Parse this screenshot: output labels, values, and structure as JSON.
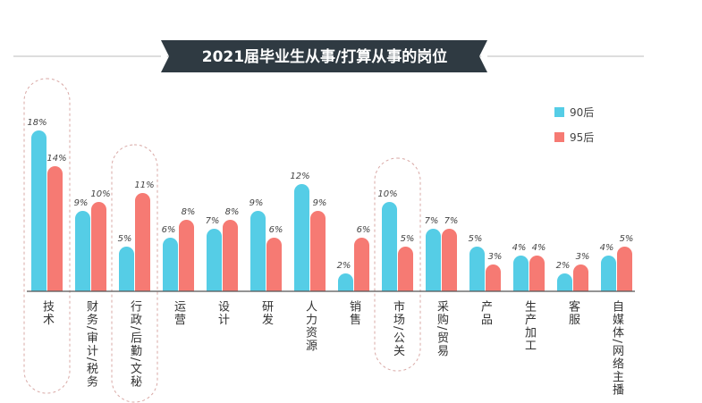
{
  "chart_data": {
    "type": "bar",
    "title": "2021届毕业生从事/打算从事的岗位",
    "categories": [
      "技术",
      "财务/审计/税务",
      "行政/后勤/文秘",
      "运营",
      "设计",
      "研发",
      "人力资源",
      "销售",
      "市场/公关",
      "采购/贸易",
      "产品",
      "生产加工",
      "客服",
      "自媒体/网络主播"
    ],
    "series": [
      {
        "name": "90后",
        "color": "#55cde6",
        "values": [
          18,
          9,
          5,
          6,
          7,
          9,
          12,
          2,
          10,
          7,
          5,
          4,
          2,
          4
        ]
      },
      {
        "name": "95后",
        "color": "#f67a73",
        "values": [
          14,
          10,
          11,
          8,
          8,
          6,
          9,
          6,
          5,
          7,
          3,
          4,
          3,
          5
        ]
      }
    ],
    "value_format": "{v}%",
    "highlighted_categories": [
      "技术",
      "行政/后勤/文秘",
      "市场/公关"
    ],
    "legend_position": "top-right",
    "grid": false,
    "ylim": [
      0,
      18
    ],
    "banner_color": "#2f3a42"
  }
}
